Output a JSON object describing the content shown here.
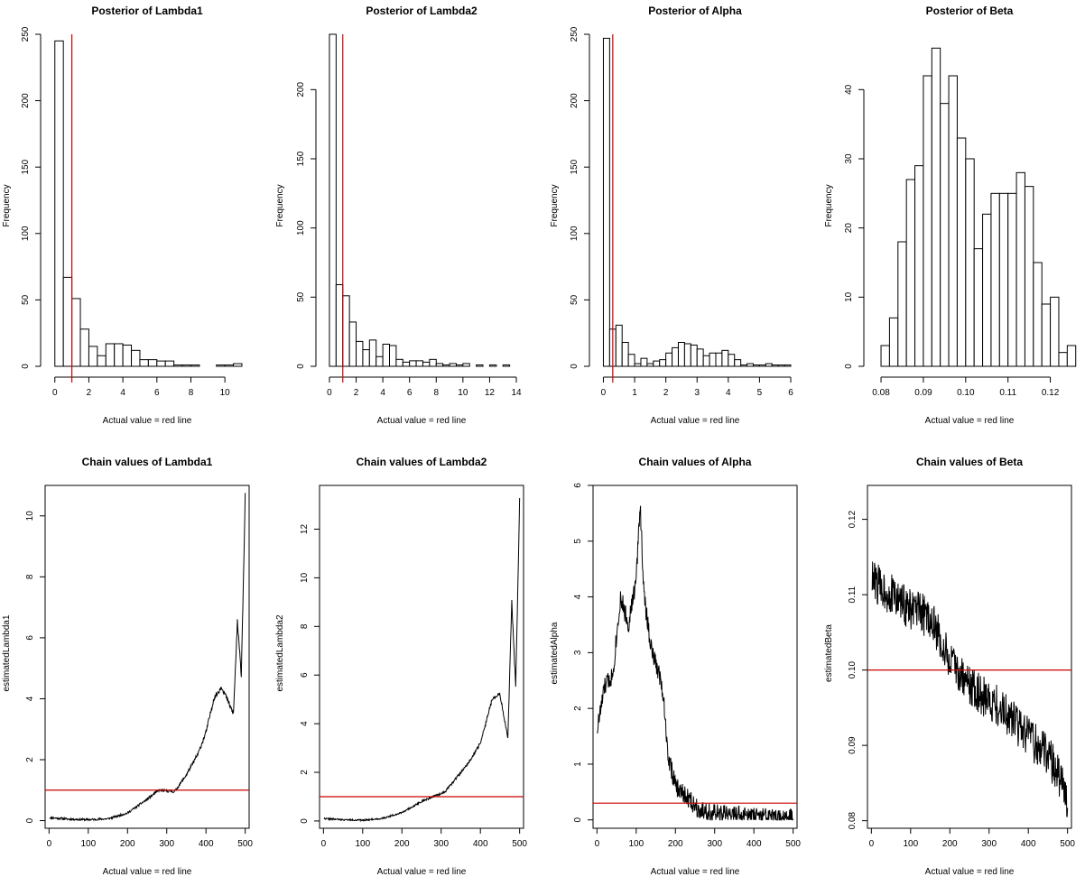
{
  "colors": {
    "reference_line": "#cc0000",
    "bar_fill": "#ffffff",
    "stroke": "#000000"
  },
  "chart_data": [
    {
      "type": "bar",
      "title": "Posterior of Lambda1",
      "xlabel": "Actual value = red line",
      "ylabel": "Frequency",
      "bin_start": 0,
      "bin_width": 0.5,
      "values": [
        245,
        67,
        51,
        28,
        15,
        8,
        17,
        17,
        16,
        12,
        5,
        5,
        4,
        4,
        1,
        1,
        1,
        0,
        0,
        1,
        1,
        2
      ],
      "xlim": [
        -0.2,
        11
      ],
      "ylim": [
        0,
        250
      ],
      "xticks": [
        0,
        2,
        4,
        6,
        8,
        10
      ],
      "yticks": [
        0,
        50,
        100,
        150,
        200,
        250
      ],
      "reference": {
        "orientation": "vertical",
        "value": 1.0
      }
    },
    {
      "type": "bar",
      "title": "Posterior of Lambda2",
      "xlabel": "Actual value = red line",
      "ylabel": "Frequency",
      "bin_start": 0,
      "bin_width": 0.5,
      "values": [
        240,
        59,
        51,
        32,
        18,
        12,
        19,
        7,
        16,
        15,
        5,
        3,
        4,
        4,
        3,
        5,
        2,
        1,
        2,
        1,
        2,
        0,
        1,
        0,
        1,
        0,
        1
      ],
      "xlim": [
        -0.2,
        14
      ],
      "ylim": [
        0,
        240
      ],
      "xticks": [
        0,
        2,
        4,
        6,
        8,
        10,
        12,
        14
      ],
      "yticks": [
        0,
        50,
        100,
        150,
        200
      ],
      "reference": {
        "orientation": "vertical",
        "value": 1.0
      }
    },
    {
      "type": "bar",
      "title": "Posterior of Alpha",
      "xlabel": "Actual value = red line",
      "ylabel": "Frequency",
      "bin_start": 0,
      "bin_width": 0.2,
      "values": [
        247,
        28,
        31,
        18,
        9,
        2,
        6,
        2,
        4,
        5,
        10,
        14,
        18,
        17,
        16,
        13,
        8,
        10,
        10,
        12,
        9,
        5,
        1,
        2,
        1,
        1,
        2,
        1,
        1,
        1
      ],
      "xlim": [
        -0.1,
        6
      ],
      "ylim": [
        0,
        250
      ],
      "xticks": [
        0,
        1,
        2,
        3,
        4,
        5,
        6
      ],
      "yticks": [
        0,
        50,
        100,
        150,
        200,
        250
      ],
      "reference": {
        "orientation": "vertical",
        "value": 0.3
      }
    },
    {
      "type": "bar",
      "title": "Posterior of Beta",
      "xlabel": "Actual value = red line",
      "ylabel": "Frequency",
      "bin_start": 0.08,
      "bin_width": 0.002,
      "values": [
        3,
        7,
        18,
        27,
        29,
        42,
        46,
        38,
        42,
        33,
        30,
        17,
        22,
        25,
        25,
        25,
        28,
        26,
        15,
        9,
        10,
        2,
        3
      ],
      "xlim": [
        0.0785,
        0.1235
      ],
      "ylim": [
        0,
        48
      ],
      "xticks": [
        0.08,
        0.09,
        0.1,
        0.11,
        0.12
      ],
      "xtick_labels": [
        "0.08",
        "0.09",
        "0.10",
        "0.11",
        "0.12"
      ],
      "yticks": [
        0,
        10,
        20,
        30,
        40
      ],
      "reference": null
    },
    {
      "type": "line",
      "title": "Chain values of Lambda1",
      "xlabel": "Actual value = red line",
      "ylabel": "estimatedLambda1",
      "n": 500,
      "anchors": [
        [
          0,
          0.1
        ],
        [
          50,
          0.05
        ],
        [
          100,
          0.03
        ],
        [
          150,
          0.06
        ],
        [
          200,
          0.25
        ],
        [
          250,
          0.7
        ],
        [
          280,
          1.0
        ],
        [
          320,
          0.95
        ],
        [
          350,
          1.5
        ],
        [
          380,
          2.2
        ],
        [
          400,
          2.9
        ],
        [
          420,
          4.0
        ],
        [
          440,
          4.4
        ],
        [
          470,
          3.5
        ],
        [
          480,
          6.5
        ],
        [
          490,
          4.8
        ],
        [
          500,
          10.6
        ]
      ],
      "noise": {
        "scale": 0.11,
        "min": 0.01,
        "seed": 11
      },
      "xlim": [
        -10,
        510
      ],
      "ylim": [
        -0.25,
        11
      ],
      "xticks": [
        0,
        100,
        200,
        300,
        400,
        500
      ],
      "yticks": [
        0,
        2,
        4,
        6,
        8,
        10
      ],
      "reference": {
        "orientation": "horizontal",
        "value": 1.0
      }
    },
    {
      "type": "line",
      "title": "Chain values of Lambda2",
      "xlabel": "Actual value = red line",
      "ylabel": "estimatedLambda2",
      "n": 500,
      "anchors": [
        [
          0,
          0.1
        ],
        [
          50,
          0.05
        ],
        [
          100,
          0.03
        ],
        [
          150,
          0.1
        ],
        [
          200,
          0.35
        ],
        [
          250,
          0.8
        ],
        [
          280,
          1.0
        ],
        [
          310,
          1.2
        ],
        [
          340,
          1.8
        ],
        [
          370,
          2.4
        ],
        [
          400,
          3.2
        ],
        [
          430,
          5.0
        ],
        [
          450,
          5.2
        ],
        [
          470,
          3.4
        ],
        [
          480,
          9.0
        ],
        [
          490,
          5.5
        ],
        [
          500,
          13.2
        ]
      ],
      "noise": {
        "scale": 0.1,
        "min": 0.01,
        "seed": 22
      },
      "xlim": [
        -10,
        510
      ],
      "ylim": [
        -0.3,
        13.8
      ],
      "xticks": [
        0,
        100,
        200,
        300,
        400,
        500
      ],
      "yticks": [
        0,
        2,
        4,
        6,
        8,
        10,
        12
      ],
      "reference": {
        "orientation": "horizontal",
        "value": 1.0
      }
    },
    {
      "type": "line",
      "title": "Chain values of Alpha",
      "xlabel": "Actual value = red line",
      "ylabel": "estimatedAlpha",
      "n": 500,
      "anchors": [
        [
          0,
          1.6
        ],
        [
          20,
          2.4
        ],
        [
          40,
          2.6
        ],
        [
          60,
          4.0
        ],
        [
          80,
          3.5
        ],
        [
          100,
          4.3
        ],
        [
          110,
          5.7
        ],
        [
          120,
          4.0
        ],
        [
          140,
          3.0
        ],
        [
          160,
          2.6
        ],
        [
          170,
          2.2
        ],
        [
          180,
          1.2
        ],
        [
          200,
          0.6
        ],
        [
          230,
          0.4
        ],
        [
          260,
          0.2
        ],
        [
          300,
          0.1
        ],
        [
          340,
          0.1
        ],
        [
          400,
          0.05
        ],
        [
          450,
          0.02
        ],
        [
          500,
          0.02
        ]
      ],
      "noise": {
        "scale": 0.18,
        "min": 0.0,
        "seed": 33
      },
      "xlim": [
        -10,
        510
      ],
      "ylim": [
        -0.15,
        6
      ],
      "xticks": [
        0,
        100,
        200,
        300,
        400,
        500
      ],
      "yticks": [
        0,
        1,
        2,
        3,
        4,
        5,
        6
      ],
      "reference": {
        "orientation": "horizontal",
        "value": 0.3
      }
    },
    {
      "type": "line",
      "title": "Chain values of Beta",
      "xlabel": "Actual value = red line",
      "ylabel": "estimatedBeta",
      "n": 500,
      "anchors": [
        [
          0,
          0.112
        ],
        [
          50,
          0.11
        ],
        [
          100,
          0.108
        ],
        [
          150,
          0.107
        ],
        [
          200,
          0.101
        ],
        [
          250,
          0.098
        ],
        [
          300,
          0.096
        ],
        [
          350,
          0.094
        ],
        [
          400,
          0.091
        ],
        [
          450,
          0.089
        ],
        [
          500,
          0.083
        ]
      ],
      "noise": {
        "scale": 0.0028,
        "min": 0.0805,
        "seed": 44
      },
      "xlim": [
        -10,
        510
      ],
      "ylim": [
        0.079,
        0.1245
      ],
      "xticks": [
        0,
        100,
        200,
        300,
        400,
        500
      ],
      "yticks": [
        0.08,
        0.09,
        0.1,
        0.11,
        0.12
      ],
      "ytick_labels": [
        "0.08",
        "0.09",
        "0.10",
        "0.11",
        "0.12"
      ],
      "reference": {
        "orientation": "horizontal",
        "value": 0.1
      }
    }
  ]
}
